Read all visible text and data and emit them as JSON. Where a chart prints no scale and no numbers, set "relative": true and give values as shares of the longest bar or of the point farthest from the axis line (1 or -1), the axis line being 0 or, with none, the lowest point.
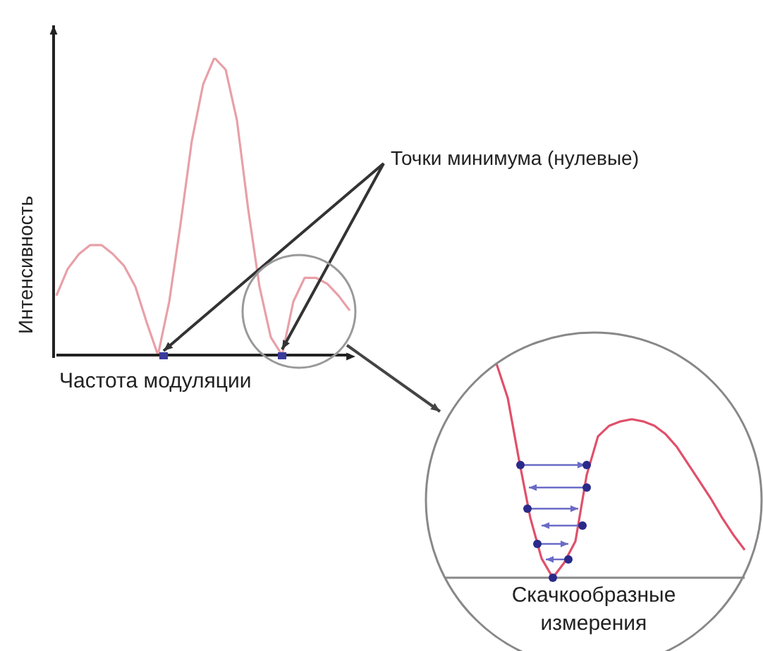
{
  "chart_data": [
    {
      "type": "line",
      "relative": true,
      "xlabel": "Частота модуляции",
      "ylabel": "Интенсивность",
      "annotations": [
        "Точки минимума (нулевые)"
      ],
      "categories": [
        null,
        null,
        null,
        null,
        null,
        null,
        null,
        null,
        null,
        null,
        null,
        null,
        null,
        null,
        null,
        null,
        null,
        null,
        null,
        null,
        null,
        null,
        null,
        null,
        null,
        null,
        null
      ],
      "series": [
        {
          "color": "#e8a0a8",
          "values": [
            0.2,
            0.29,
            0.34,
            0.37,
            0.37,
            0.34,
            0.3,
            0.23,
            0.11,
            0,
            0.18,
            0.44,
            0.72,
            0.91,
            1,
            0.96,
            0.79,
            0.49,
            0.23,
            0.06,
            0,
            0.18,
            0.26,
            0.26,
            0.24,
            0.2,
            0.15
          ]
        }
      ]
    },
    {
      "type": "line",
      "relative": true,
      "xlabel": "Скачкообразные измерения",
      "categories": [
        null,
        null,
        null,
        null,
        null,
        null,
        null,
        null,
        null,
        null,
        null,
        null,
        null,
        null,
        null,
        null,
        null,
        null,
        null,
        null,
        null,
        null,
        null
      ],
      "series": [
        {
          "color": "#e0506a",
          "values": [
            1,
            0.84,
            0.55,
            0.28,
            0.09,
            0,
            0.07,
            0.17,
            0.48,
            0.66,
            0.71,
            0.73,
            0.74,
            0.73,
            0.71,
            0.67,
            0.61,
            0.53,
            0.45,
            0.37,
            0.28,
            0.2,
            0.13
          ]
        }
      ]
    }
  ]
}
